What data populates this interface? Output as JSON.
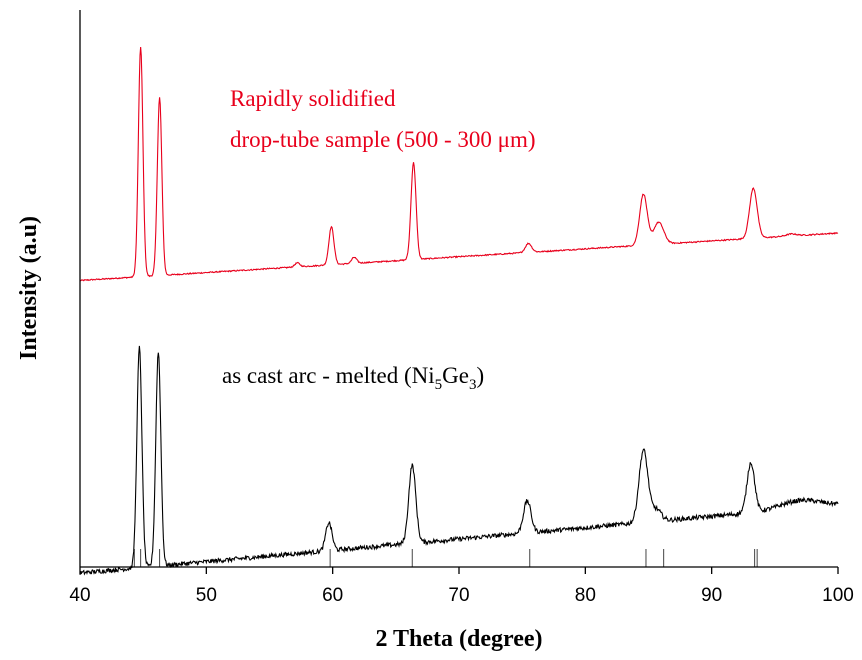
{
  "chart_data": {
    "type": "line",
    "title": "",
    "xlabel": "2 Theta (degree)",
    "ylabel": "Intensity (a.u)",
    "xlim": [
      40,
      100
    ],
    "xticks": [
      40,
      50,
      60,
      70,
      80,
      90,
      100
    ],
    "grid": false,
    "legend": "none",
    "reference_peaks": [
      44.3,
      44.8,
      46.3,
      59.8,
      66.3,
      75.6,
      84.8,
      86.2,
      93.4,
      93.6
    ],
    "series": [
      {
        "color": "#e8001c",
        "baseline": {
          "x": [
            40,
            100
          ],
          "y": [
            0.145,
            0.62
          ]
        },
        "peaks": [
          {
            "x": 44.8,
            "height": 2.3,
            "width": 0.18
          },
          {
            "x": 46.3,
            "height": 1.78,
            "width": 0.18
          },
          {
            "x": 57.2,
            "height": 0.04,
            "width": 0.2
          },
          {
            "x": 59.9,
            "height": 0.38,
            "width": 0.2
          },
          {
            "x": 61.7,
            "height": 0.06,
            "width": 0.2
          },
          {
            "x": 66.4,
            "height": 0.97,
            "width": 0.2
          },
          {
            "x": 75.5,
            "height": 0.09,
            "width": 0.25
          },
          {
            "x": 84.6,
            "height": 0.51,
            "width": 0.3
          },
          {
            "x": 85.8,
            "height": 0.22,
            "width": 0.4
          },
          {
            "x": 93.3,
            "height": 0.5,
            "width": 0.3
          },
          {
            "x": 96.3,
            "height": 0.02,
            "width": 0.4
          }
        ]
      },
      {
        "color": "#000000",
        "baseline": {
          "x": [
            40,
            100
          ],
          "y": [
            -2.78,
            -2.1
          ]
        },
        "peaks": [
          {
            "x": 44.7,
            "height": 2.2,
            "width": 0.2
          },
          {
            "x": 46.2,
            "height": 2.14,
            "width": 0.2
          },
          {
            "x": 59.7,
            "height": 0.28,
            "width": 0.25
          },
          {
            "x": 66.3,
            "height": 0.78,
            "width": 0.28
          },
          {
            "x": 75.4,
            "height": 0.32,
            "width": 0.3
          },
          {
            "x": 84.6,
            "height": 0.72,
            "width": 0.35
          },
          {
            "x": 85.6,
            "height": 0.12,
            "width": 0.4
          },
          {
            "x": 93.1,
            "height": 0.5,
            "width": 0.3
          }
        ]
      }
    ],
    "annotations": {
      "red_line1": "Rapidly solidified",
      "red_line2": "drop-tube sample (500 - 300 μm)",
      "black_prefix": "as cast arc - melted (Ni",
      "black_sub1": "5",
      "black_mid": "Ge",
      "black_sub2": "3",
      "black_suffix": ")"
    }
  }
}
